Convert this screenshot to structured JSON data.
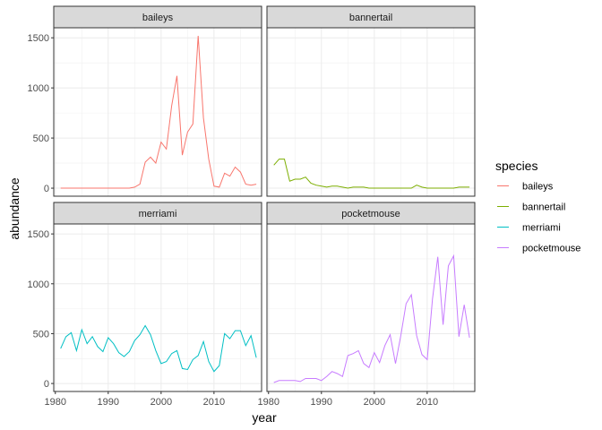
{
  "chart_data": {
    "type": "line",
    "facet_by": "species",
    "xlabel": "year",
    "ylabel": "abundance",
    "x_ticks": [
      1980,
      1990,
      2000,
      2010
    ],
    "y_ticks": [
      0,
      500,
      1000,
      1500
    ],
    "xlim": [
      1979.7,
      2019
    ],
    "ylim": [
      -80,
      1600
    ],
    "grid": true,
    "legend": {
      "title": "species",
      "position": "right",
      "items": [
        "baileys",
        "bannertail",
        "merriami",
        "pocketmouse"
      ]
    },
    "x": [
      1981,
      1982,
      1983,
      1984,
      1985,
      1986,
      1987,
      1988,
      1989,
      1990,
      1991,
      1992,
      1993,
      1994,
      1995,
      1996,
      1997,
      1998,
      1999,
      2000,
      2001,
      2002,
      2003,
      2004,
      2005,
      2006,
      2007,
      2008,
      2009,
      2010,
      2011,
      2012,
      2013,
      2014,
      2015,
      2016,
      2017,
      2018
    ],
    "series": [
      {
        "name": "baileys",
        "color": "#F8766D",
        "values": [
          0,
          0,
          0,
          0,
          0,
          0,
          0,
          0,
          0,
          0,
          0,
          0,
          0,
          0,
          10,
          40,
          260,
          310,
          250,
          460,
          390,
          820,
          1120,
          330,
          560,
          640,
          1520,
          700,
          290,
          20,
          10,
          150,
          120,
          210,
          160,
          40,
          30,
          40
        ]
      },
      {
        "name": "bannertail",
        "color": "#7CAE00",
        "values": [
          230,
          290,
          290,
          70,
          90,
          90,
          110,
          50,
          30,
          20,
          10,
          20,
          20,
          10,
          0,
          10,
          10,
          10,
          0,
          0,
          0,
          0,
          0,
          0,
          0,
          0,
          0,
          30,
          10,
          0,
          0,
          0,
          0,
          0,
          0,
          10,
          10,
          10
        ]
      },
      {
        "name": "merriami",
        "color": "#00BFC4",
        "values": [
          350,
          470,
          510,
          330,
          540,
          400,
          470,
          370,
          320,
          460,
          400,
          310,
          270,
          320,
          430,
          490,
          580,
          490,
          330,
          200,
          220,
          300,
          330,
          150,
          140,
          240,
          280,
          420,
          220,
          120,
          180,
          500,
          450,
          530,
          530,
          380,
          480,
          260
        ]
      },
      {
        "name": "pocketmouse",
        "color": "#C77CFF",
        "values": [
          10,
          30,
          30,
          30,
          30,
          20,
          50,
          50,
          50,
          30,
          70,
          120,
          100,
          70,
          280,
          300,
          330,
          200,
          160,
          310,
          210,
          380,
          490,
          200,
          480,
          800,
          890,
          480,
          290,
          240,
          850,
          1270,
          590,
          1180,
          1280,
          470,
          790,
          460
        ]
      }
    ]
  }
}
